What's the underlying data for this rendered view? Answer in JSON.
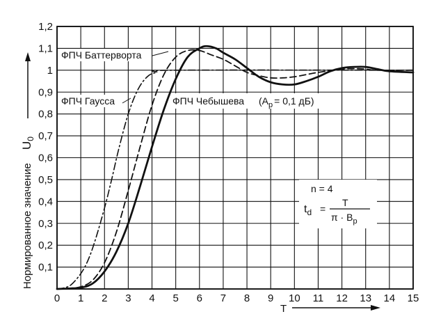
{
  "chart_data": {
    "type": "line",
    "title": "",
    "xlabel": "T",
    "ylabel": "Нормированное значение",
    "ylabel_symbol": "U",
    "ylabel_symbol_sub": "0",
    "xlim": [
      0,
      15
    ],
    "ylim": [
      0,
      1.2
    ],
    "grid": true,
    "x_ticks": [
      "0",
      "1",
      "2",
      "3",
      "4",
      "5",
      "6",
      "7",
      "8",
      "9",
      "10",
      "11",
      "12",
      "13",
      "14",
      "15"
    ],
    "y_ticks": [
      "0,1",
      "0,2",
      "0,3",
      "0,4",
      "0,5",
      "0,6",
      "0,7",
      "0,8",
      "0,9",
      "1",
      "1,1",
      "1,2"
    ],
    "series": [
      {
        "name": "ФПЧ Гаусса",
        "style": "dash-dot",
        "points": [
          [
            0,
            0
          ],
          [
            0.3,
            0.005
          ],
          [
            0.6,
            0.02
          ],
          [
            1.0,
            0.07
          ],
          [
            1.3,
            0.13
          ],
          [
            1.6,
            0.22
          ],
          [
            2.0,
            0.37
          ],
          [
            2.3,
            0.5
          ],
          [
            2.6,
            0.64
          ],
          [
            3.0,
            0.8
          ],
          [
            3.4,
            0.91
          ],
          [
            3.8,
            0.97
          ],
          [
            4.2,
            0.99
          ],
          [
            5.0,
            1.0
          ],
          [
            15,
            1.0
          ]
        ]
      },
      {
        "name": "ФПЧ Баттерворта",
        "style": "dashed",
        "points": [
          [
            0,
            0
          ],
          [
            0.5,
            0.003
          ],
          [
            1.0,
            0.01
          ],
          [
            1.5,
            0.04
          ],
          [
            2.0,
            0.12
          ],
          [
            2.5,
            0.26
          ],
          [
            3.0,
            0.45
          ],
          [
            3.5,
            0.65
          ],
          [
            4.0,
            0.84
          ],
          [
            4.5,
            0.98
          ],
          [
            5.0,
            1.06
          ],
          [
            5.5,
            1.09
          ],
          [
            6.0,
            1.09
          ],
          [
            6.5,
            1.07
          ],
          [
            7.0,
            1.05
          ],
          [
            7.5,
            1.02
          ],
          [
            8.0,
            0.99
          ],
          [
            8.5,
            0.975
          ],
          [
            9.0,
            0.965
          ],
          [
            9.5,
            0.965
          ],
          [
            10.0,
            0.97
          ],
          [
            10.5,
            0.98
          ],
          [
            11.0,
            0.99
          ],
          [
            12.0,
            1.005
          ],
          [
            12.5,
            1.007
          ],
          [
            13.0,
            1.005
          ],
          [
            13.5,
            1.0
          ],
          [
            15,
            1.0
          ]
        ]
      },
      {
        "name": "ФПЧ Чебышева (Ap=0,1 дБ)",
        "style": "solid",
        "points": [
          [
            0,
            0
          ],
          [
            0.5,
            0.002
          ],
          [
            1.0,
            0.006
          ],
          [
            1.5,
            0.025
          ],
          [
            2.0,
            0.08
          ],
          [
            2.5,
            0.17
          ],
          [
            3.0,
            0.3
          ],
          [
            3.5,
            0.47
          ],
          [
            4.0,
            0.65
          ],
          [
            4.5,
            0.82
          ],
          [
            5.0,
            0.96
          ],
          [
            5.5,
            1.06
          ],
          [
            6.0,
            1.1
          ],
          [
            6.3,
            1.11
          ],
          [
            6.7,
            1.1
          ],
          [
            7.0,
            1.08
          ],
          [
            7.5,
            1.05
          ],
          [
            8.0,
            1.01
          ],
          [
            8.5,
            0.97
          ],
          [
            9.0,
            0.945
          ],
          [
            9.5,
            0.935
          ],
          [
            10.0,
            0.935
          ],
          [
            10.5,
            0.95
          ],
          [
            11.0,
            0.97
          ],
          [
            11.5,
            0.995
          ],
          [
            12.0,
            1.01
          ],
          [
            12.5,
            1.015
          ],
          [
            13.0,
            1.015
          ],
          [
            13.5,
            1.005
          ],
          [
            14.0,
            0.995
          ],
          [
            15,
            0.99
          ]
        ]
      }
    ],
    "annotations": {
      "butterworth_label": "ФПЧ Баттерворта",
      "gauss_label": "ФПЧ Гаусса",
      "chebyshev_label": "ФПЧ Чебышева",
      "chebyshev_param": "(A",
      "chebyshev_param_sub": "p",
      "chebyshev_param_rest": "= 0,1 дБ)",
      "n_label": "n = 4",
      "formula_lhs": "t",
      "formula_lhs_sub": "d",
      "formula_eq": "=",
      "formula_num": "T",
      "formula_den_pre": "π · B",
      "formula_den_sub": "p"
    }
  }
}
